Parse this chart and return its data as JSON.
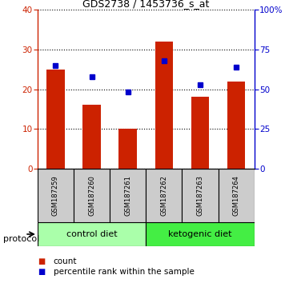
{
  "title": "GDS2738 / 1453736_s_at",
  "samples": [
    "GSM187259",
    "GSM187260",
    "GSM187261",
    "GSM187262",
    "GSM187263",
    "GSM187264"
  ],
  "counts": [
    25,
    16,
    10,
    32,
    18,
    22
  ],
  "percentile_ranks": [
    65,
    58,
    48,
    68,
    53,
    64
  ],
  "left_ylim": [
    0,
    40
  ],
  "right_ylim": [
    0,
    100
  ],
  "left_yticks": [
    0,
    10,
    20,
    30,
    40
  ],
  "right_yticks": [
    0,
    25,
    50,
    75,
    100
  ],
  "right_yticklabels": [
    "0",
    "25",
    "50",
    "75",
    "100%"
  ],
  "bar_color": "#cc2200",
  "dot_color": "#0000cc",
  "control_color": "#aaffaa",
  "keto_color": "#44ee44",
  "tick_label_area_color": "#cccccc",
  "bar_width": 0.5,
  "legend_square_size": 7,
  "title_fontsize": 9,
  "tick_fontsize": 7.5,
  "sample_fontsize": 6,
  "protocol_fontsize": 8,
  "legend_fontsize": 7.5
}
